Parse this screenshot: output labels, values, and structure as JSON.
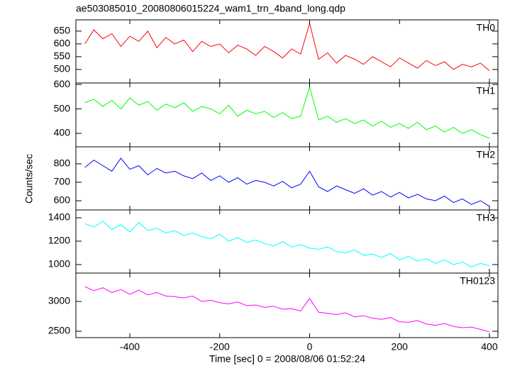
{
  "chart_data": [
    {
      "type": "line",
      "title": "ae503085010_20080806015224_wam1_trn_4band_long.qdp",
      "x": [
        -500,
        -480,
        -460,
        -440,
        -420,
        -400,
        -380,
        -360,
        -340,
        -320,
        -300,
        -280,
        -260,
        -240,
        -220,
        -200,
        -180,
        -160,
        -140,
        -120,
        -100,
        -80,
        -60,
        -40,
        -20,
        0,
        20,
        40,
        60,
        80,
        100,
        120,
        140,
        160,
        180,
        200,
        220,
        240,
        260,
        280,
        300,
        320,
        340,
        360,
        380,
        400
      ],
      "series": [
        {
          "name": "TH0",
          "color": "#ff0000",
          "values": [
            600,
            655,
            620,
            640,
            590,
            630,
            610,
            650,
            585,
            625,
            600,
            615,
            570,
            610,
            590,
            600,
            565,
            595,
            580,
            555,
            590,
            570,
            545,
            580,
            560,
            680,
            540,
            565,
            525,
            555,
            540,
            520,
            550,
            530,
            510,
            545,
            525,
            505,
            535,
            515,
            530,
            500,
            520,
            510,
            525,
            495
          ]
        }
      ],
      "xlim": [
        -520,
        419
      ],
      "ylim": [
        447,
        694
      ],
      "yticks": [
        500,
        550,
        600,
        650
      ]
    },
    {
      "type": "line",
      "x": [
        -500,
        -480,
        -460,
        -440,
        -420,
        -400,
        -380,
        -360,
        -340,
        -320,
        -300,
        -280,
        -260,
        -240,
        -220,
        -200,
        -180,
        -160,
        -140,
        -120,
        -100,
        -80,
        -60,
        -40,
        -20,
        0,
        20,
        40,
        60,
        80,
        100,
        120,
        140,
        160,
        180,
        200,
        220,
        240,
        260,
        280,
        300,
        320,
        340,
        360,
        380,
        400
      ],
      "series": [
        {
          "name": "TH1",
          "color": "#00ff00",
          "values": [
            525,
            540,
            510,
            535,
            500,
            545,
            515,
            530,
            495,
            520,
            505,
            525,
            490,
            510,
            500,
            480,
            515,
            470,
            495,
            480,
            490,
            465,
            485,
            460,
            470,
            590,
            455,
            470,
            445,
            460,
            440,
            455,
            430,
            450,
            425,
            440,
            420,
            445,
            415,
            430,
            405,
            425,
            400,
            415,
            395,
            380
          ]
        }
      ],
      "xlim": [
        -520,
        419
      ],
      "ylim": [
        345,
        606
      ],
      "yticks": [
        400,
        500,
        600
      ]
    },
    {
      "type": "line",
      "ylabel": "Counts/sec",
      "x": [
        -500,
        -480,
        -460,
        -440,
        -420,
        -400,
        -380,
        -360,
        -340,
        -320,
        -300,
        -280,
        -260,
        -240,
        -220,
        -200,
        -180,
        -160,
        -140,
        -120,
        -100,
        -80,
        -60,
        -40,
        -20,
        0,
        20,
        40,
        60,
        80,
        100,
        120,
        140,
        160,
        180,
        200,
        220,
        240,
        260,
        280,
        300,
        320,
        340,
        360,
        380,
        400
      ],
      "series": [
        {
          "name": "TH2",
          "color": "#0000ff",
          "values": [
            780,
            820,
            790,
            760,
            830,
            770,
            790,
            740,
            775,
            750,
            760,
            735,
            720,
            750,
            710,
            735,
            700,
            725,
            690,
            710,
            700,
            680,
            705,
            670,
            690,
            760,
            675,
            650,
            680,
            660,
            640,
            665,
            630,
            650,
            620,
            645,
            615,
            635,
            610,
            600,
            625,
            590,
            610,
            580,
            600,
            570
          ]
        }
      ],
      "xlim": [
        -520,
        419
      ],
      "ylim": [
        550,
        892
      ],
      "yticks": [
        600,
        700,
        800
      ]
    },
    {
      "type": "line",
      "x": [
        -500,
        -480,
        -460,
        -440,
        -420,
        -400,
        -380,
        -360,
        -340,
        -320,
        -300,
        -280,
        -260,
        -240,
        -220,
        -200,
        -180,
        -160,
        -140,
        -120,
        -100,
        -80,
        -60,
        -40,
        -20,
        0,
        20,
        40,
        60,
        80,
        100,
        120,
        140,
        160,
        180,
        200,
        220,
        240,
        260,
        280,
        300,
        320,
        340,
        360,
        380,
        400
      ],
      "series": [
        {
          "name": "TH3",
          "color": "#00ffff",
          "values": [
            1350,
            1320,
            1370,
            1300,
            1340,
            1280,
            1360,
            1290,
            1310,
            1270,
            1290,
            1250,
            1270,
            1240,
            1220,
            1260,
            1200,
            1230,
            1190,
            1210,
            1180,
            1160,
            1195,
            1150,
            1170,
            1140,
            1130,
            1150,
            1110,
            1100,
            1125,
            1080,
            1090,
            1060,
            1095,
            1040,
            1070,
            1030,
            1050,
            1010,
            1040,
            1000,
            1020,
            980,
            1010,
            990
          ]
        }
      ],
      "xlim": [
        -520,
        419
      ],
      "ylim": [
        927,
        1467
      ],
      "yticks": [
        1000,
        1200,
        1400
      ]
    },
    {
      "type": "line",
      "xlabel": "Time [sec] 0 = 2008/08/06 01:52:24",
      "x": [
        -500,
        -480,
        -460,
        -440,
        -420,
        -400,
        -380,
        -360,
        -340,
        -320,
        -300,
        -280,
        -260,
        -240,
        -220,
        -200,
        -180,
        -160,
        -140,
        -120,
        -100,
        -80,
        -60,
        -40,
        -20,
        0,
        20,
        40,
        60,
        80,
        100,
        120,
        140,
        160,
        180,
        200,
        220,
        240,
        260,
        280,
        300,
        320,
        340,
        360,
        380,
        400
      ],
      "series": [
        {
          "name": "TH0123",
          "color": "#ff00ff",
          "values": [
            3250,
            3180,
            3230,
            3150,
            3200,
            3120,
            3190,
            3110,
            3150,
            3090,
            3080,
            3060,
            3090,
            3000,
            3020,
            2980,
            2960,
            2990,
            2930,
            2940,
            2900,
            2920,
            2870,
            2880,
            2840,
            3050,
            2820,
            2800,
            2780,
            2810,
            2740,
            2760,
            2720,
            2700,
            2730,
            2660,
            2650,
            2680,
            2620,
            2600,
            2630,
            2580,
            2560,
            2570,
            2530,
            2490
          ]
        }
      ],
      "xlim": [
        -520,
        419
      ],
      "ylim": [
        2393,
        3476
      ],
      "yticks": [
        2500,
        3000
      ],
      "xticks": [
        -400,
        -200,
        0,
        200,
        400
      ]
    }
  ]
}
